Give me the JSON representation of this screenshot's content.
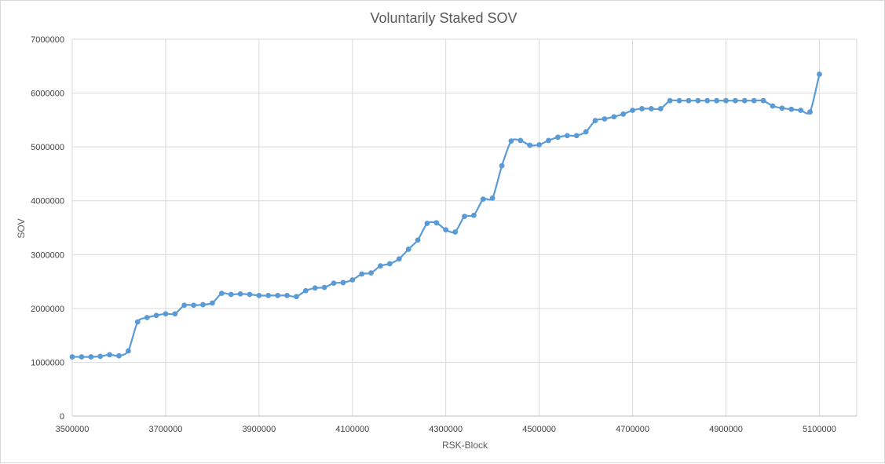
{
  "chart_data": {
    "type": "line",
    "title": "Voluntarily Staked SOV",
    "xlabel": "RSK-Block",
    "ylabel": "SOV",
    "xlim": [
      3500000,
      5180000
    ],
    "ylim": [
      0,
      7000000
    ],
    "x_ticks": [
      3500000,
      3700000,
      3900000,
      4100000,
      4300000,
      4500000,
      4700000,
      4900000,
      5100000
    ],
    "y_ticks": [
      0,
      1000000,
      2000000,
      3000000,
      4000000,
      5000000,
      6000000,
      7000000
    ],
    "grid": true,
    "legend": "none",
    "series_color": "#5b9bd5",
    "series": [
      {
        "name": "SOV",
        "x": [
          3500000,
          3520000,
          3540000,
          3560000,
          3580000,
          3600000,
          3620000,
          3640000,
          3660000,
          3680000,
          3700000,
          3720000,
          3740000,
          3760000,
          3780000,
          3800000,
          3820000,
          3840000,
          3860000,
          3880000,
          3900000,
          3920000,
          3940000,
          3960000,
          3980000,
          4000000,
          4020000,
          4040000,
          4060000,
          4080000,
          4100000,
          4120000,
          4140000,
          4160000,
          4180000,
          4200000,
          4220000,
          4240000,
          4260000,
          4280000,
          4300000,
          4320000,
          4340000,
          4360000,
          4380000,
          4400000,
          4420000,
          4440000,
          4460000,
          4480000,
          4500000,
          4520000,
          4540000,
          4560000,
          4580000,
          4600000,
          4620000,
          4640000,
          4660000,
          4680000,
          4700000,
          4720000,
          4740000,
          4760000,
          4780000,
          4800000,
          4820000,
          4840000,
          4860000,
          4880000,
          4900000,
          4920000,
          4940000,
          4960000,
          4980000,
          5000000,
          5020000,
          5040000,
          5060000,
          5080000,
          5100000
        ],
        "values": [
          1100000,
          1100000,
          1100000,
          1110000,
          1140000,
          1120000,
          1210000,
          1750000,
          1830000,
          1870000,
          1900000,
          1900000,
          2060000,
          2060000,
          2070000,
          2100000,
          2280000,
          2260000,
          2270000,
          2260000,
          2240000,
          2240000,
          2240000,
          2240000,
          2220000,
          2330000,
          2380000,
          2390000,
          2470000,
          2480000,
          2530000,
          2640000,
          2660000,
          2790000,
          2830000,
          2920000,
          3100000,
          3270000,
          3580000,
          3590000,
          3460000,
          3420000,
          3710000,
          3730000,
          4030000,
          4050000,
          4650000,
          5110000,
          5120000,
          5030000,
          5040000,
          5120000,
          5180000,
          5210000,
          5210000,
          5280000,
          5490000,
          5520000,
          5560000,
          5610000,
          5680000,
          5710000,
          5710000,
          5710000,
          5860000,
          5860000,
          5860000,
          5860000,
          5860000,
          5860000,
          5860000,
          5860000,
          5860000,
          5860000,
          5860000,
          5760000,
          5720000,
          5700000,
          5680000,
          5650000,
          6350000
        ]
      }
    ]
  }
}
